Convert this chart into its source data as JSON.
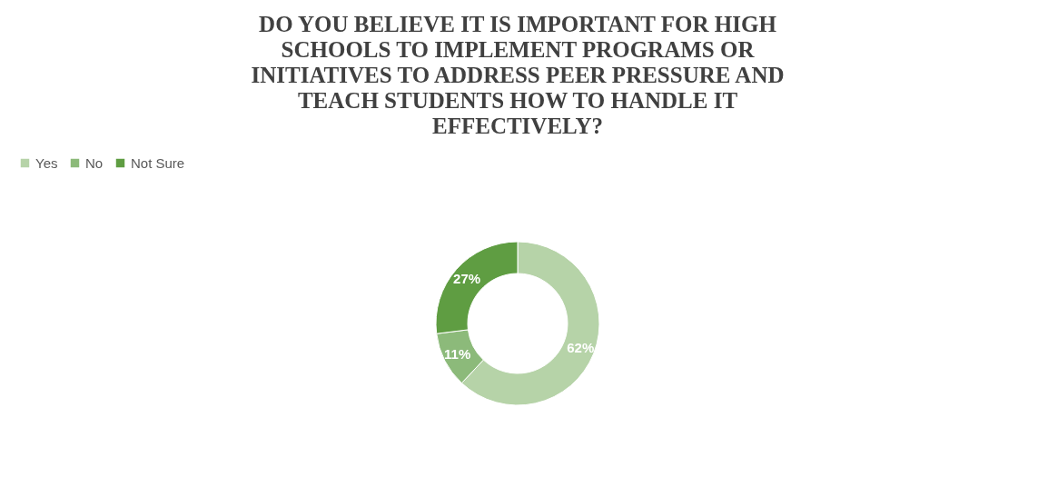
{
  "chart_data": {
    "type": "donut",
    "title": "DO YOU BELIEVE IT IS IMPORTANT FOR HIGH SCHOOLS TO IMPLEMENT PROGRAMS OR INITIATIVES TO ADDRESS PEER PRESSURE AND TEACH STUDENTS HOW TO HANDLE IT EFFECTIVELY?",
    "categories": [
      "Yes",
      "No",
      "Not Sure"
    ],
    "values": [
      62,
      11,
      27
    ],
    "colors": [
      "#b6d3a8",
      "#8cba7a",
      "#5f9d42"
    ],
    "value_labels": [
      "62%",
      "11%",
      "27%"
    ],
    "legend": "top"
  }
}
